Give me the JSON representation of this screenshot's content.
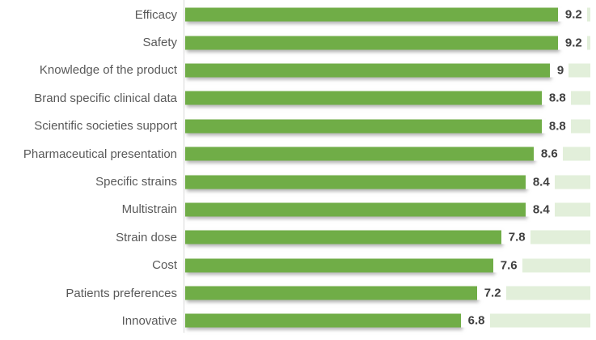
{
  "chart_data": {
    "type": "bar",
    "orientation": "horizontal",
    "title": "",
    "xlabel": "",
    "ylabel": "",
    "xlim": [
      0,
      10
    ],
    "grid": false,
    "legend": false,
    "categories": [
      "Efficacy",
      "Safety",
      "Knowledge of the product",
      "Brand specific clinical data",
      "Scientific societies support",
      "Pharmaceutical presentation",
      "Specific strains",
      "Multistrain",
      "Strain dose",
      "Cost",
      "Patients preferences",
      "Innovative"
    ],
    "values": [
      9.2,
      9.2,
      9,
      8.8,
      8.8,
      8.6,
      8.4,
      8.4,
      7.8,
      7.6,
      7.2,
      6.8
    ],
    "value_labels": [
      "9.2",
      "9.2",
      "9",
      "8.8",
      "8.8",
      "8.6",
      "8.4",
      "8.4",
      "7.8",
      "7.6",
      "7.2",
      "6.8"
    ],
    "colors": {
      "bar": "#70AD47",
      "track": "#E2EFDA",
      "axis_line": "#D9D9D9",
      "category_text": "#595959",
      "value_text": "#3F3F3F",
      "background": "#FFFFFF"
    }
  }
}
